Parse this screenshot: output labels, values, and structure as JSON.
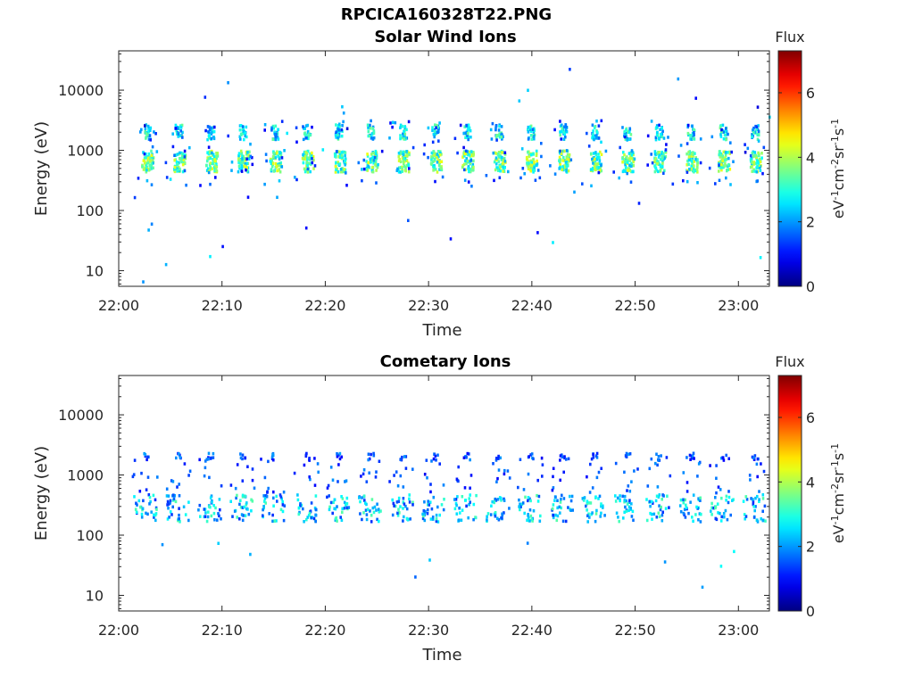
{
  "figure": {
    "title": "RPCICA160328T22.PNG"
  },
  "chart_data": [
    {
      "type": "heatmap",
      "title": "Solar Wind Ions",
      "xlabel": "Time",
      "ylabel": "Energy (eV)",
      "x_ticks": [
        "22:00",
        "22:10",
        "22:20",
        "22:30",
        "22:40",
        "22:50",
        "23:00"
      ],
      "x_range": [
        "22:00",
        "23:03"
      ],
      "y_scale": "log",
      "y_ticks": [
        10,
        100,
        1000,
        10000
      ],
      "y_tick_labels": [
        "10",
        "100",
        "1000",
        "10000"
      ],
      "ylim": [
        5.5,
        45000
      ],
      "colorbar": {
        "label": "Flux",
        "unit_label": "eV-1cm-2sr-1s-1",
        "range": [
          0,
          7.3
        ],
        "ticks": [
          0,
          2,
          4,
          6
        ],
        "tick_labels": [
          "0",
          "2",
          "4",
          "6"
        ],
        "colormap": "jet"
      },
      "grid": false,
      "features": {
        "proton_band_energy_eV": 650,
        "alpha_band_energy_eV": 2000,
        "band_period_minutes": 3.1,
        "band_start_minute": 2.5
      }
    },
    {
      "type": "heatmap",
      "title": "Cometary Ions",
      "xlabel": "Time",
      "ylabel": "Energy (eV)",
      "x_ticks": [
        "22:00",
        "22:10",
        "22:20",
        "22:30",
        "22:40",
        "22:50",
        "23:00"
      ],
      "x_range": [
        "22:00",
        "23:03"
      ],
      "y_scale": "log",
      "y_ticks": [
        10,
        100,
        1000,
        10000
      ],
      "y_tick_labels": [
        "10",
        "100",
        "1000",
        "10000"
      ],
      "ylim": [
        5.5,
        45000
      ],
      "colorbar": {
        "label": "Flux",
        "unit_label": "eV-1cm-2sr-1s-1",
        "range": [
          0,
          7.3
        ],
        "ticks": [
          0,
          2,
          4,
          6
        ],
        "tick_labels": [
          "0",
          "2",
          "4",
          "6"
        ],
        "colormap": "jet"
      },
      "grid": false,
      "features": {
        "main_band_energy_eV": 280,
        "upper_band_energy_eV": 2000,
        "band_period_minutes": 3.1,
        "band_start_minute": 2.5
      }
    }
  ]
}
